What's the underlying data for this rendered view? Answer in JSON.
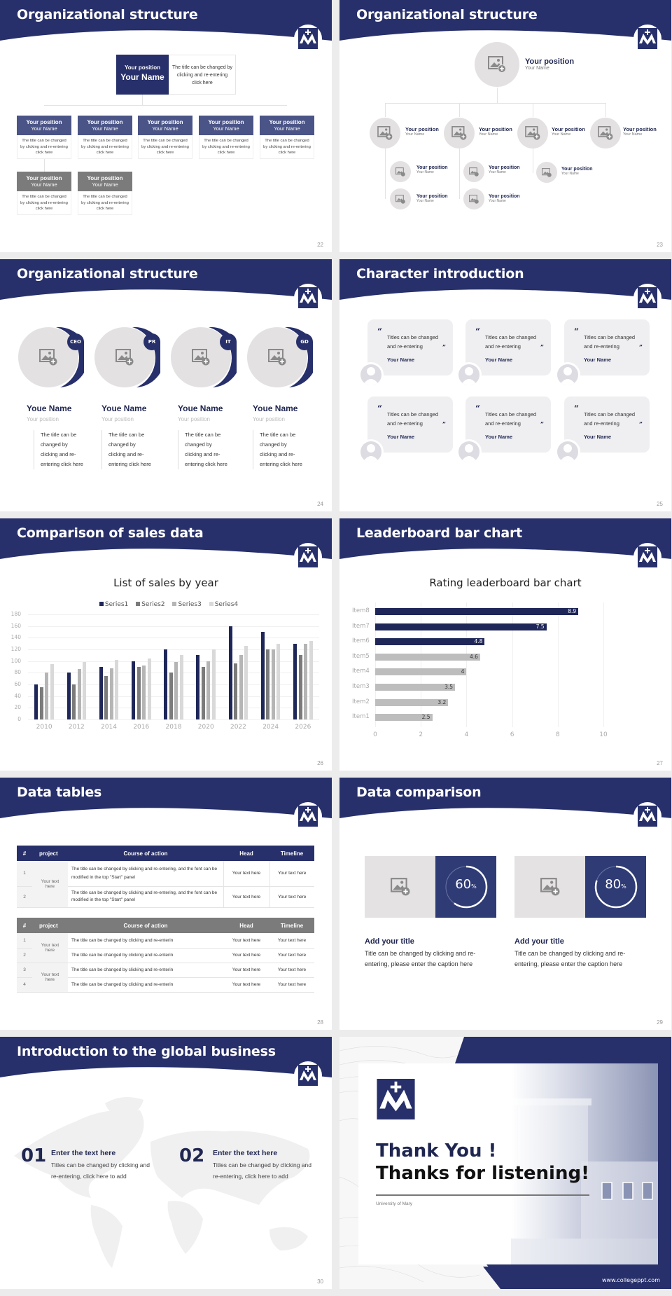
{
  "theme": {
    "navy": "#27306a",
    "gray_dark": "#7b7b7b",
    "gray_mid": "#b5b5b5",
    "gray_light": "#d9d9d9",
    "placeholder_bg": "#e3e1e1"
  },
  "slides": {
    "s22": {
      "title": "Organizational structure",
      "page": "22",
      "top": {
        "position": "Your position",
        "name": "Your Name",
        "desc": "The title can be changed by clicking and re-entering click here"
      },
      "cards": [
        {
          "position": "Your position",
          "name": "Your Name",
          "desc": "The title can be changed by clicking and re-entering click here",
          "style": "navy"
        },
        {
          "position": "Your position",
          "name": "Your Name",
          "desc": "The title can be changed by clicking and re-entering click here",
          "style": "navy"
        },
        {
          "position": "Your position",
          "name": "Your Name",
          "desc": "The title can be changed by clicking and re-entering click here",
          "style": "navy"
        },
        {
          "position": "Your position",
          "name": "Your Name",
          "desc": "The title can be changed by clicking and re-entering click here",
          "style": "navy"
        },
        {
          "position": "Your position",
          "name": "Your Name",
          "desc": "The title can be changed by clicking and re-entering click here",
          "style": "navy"
        },
        {
          "position": "Your position",
          "name": "Your Name",
          "desc": "The title can be changed by clicking and re-entering click here",
          "style": "gray"
        },
        {
          "position": "Your position",
          "name": "Your Name",
          "desc": "The title can be changed by clicking and re-entering click here",
          "style": "gray"
        }
      ]
    },
    "s23": {
      "title": "Organizational structure",
      "page": "23",
      "top": {
        "position": "Your position",
        "name": "Your Name"
      },
      "level2": [
        {
          "position": "Your position",
          "name": "Your Name"
        },
        {
          "position": "Your position",
          "name": "Your Name"
        },
        {
          "position": "Your position",
          "name": "Your Name"
        },
        {
          "position": "Your position",
          "name": "Your Name"
        }
      ],
      "level3": [
        {
          "position": "Your position",
          "name": "Your Name"
        },
        {
          "position": "Your position",
          "name": "Your Name"
        },
        {
          "position": "Your position",
          "name": "Your Name"
        },
        {
          "position": "Your position",
          "name": "Your Name"
        },
        {
          "position": "Your position",
          "name": "Your Name"
        }
      ]
    },
    "s24": {
      "title": "Organizational structure",
      "page": "24",
      "members": [
        {
          "badge": "CEO",
          "name": "Youe Name",
          "position": "Your position",
          "desc": "The title can be changed by clicking and re-entering click here"
        },
        {
          "badge": "PR",
          "name": "Youe Name",
          "position": "Your position",
          "desc": "The title can be changed by clicking and re-entering click here"
        },
        {
          "badge": "IT",
          "name": "Youe Name",
          "position": "Your position",
          "desc": "The title can be changed by clicking and re-entering click here"
        },
        {
          "badge": "GD",
          "name": "Youe Name",
          "position": "Your position",
          "desc": "The title can be changed by clicking and re-entering click here"
        }
      ]
    },
    "s25": {
      "title": "Character introduction",
      "page": "25",
      "cards": [
        {
          "quote": "Titles can be changed and re-entering",
          "name": "Your Name"
        },
        {
          "quote": "Titles can be changed and re-entering",
          "name": "Your Name"
        },
        {
          "quote": "Titles can be changed and re-entering",
          "name": "Your Name"
        },
        {
          "quote": "Titles can be changed and re-entering",
          "name": "Your Name"
        },
        {
          "quote": "Titles can be changed and re-entering",
          "name": "Your Name"
        },
        {
          "quote": "Titles can be changed and re-entering",
          "name": "Your Name"
        }
      ],
      "open_quote": "“",
      "close_quote": "”"
    },
    "s26": {
      "title": "Comparison of sales data",
      "page": "26"
    },
    "s27": {
      "title": "Leaderboard bar chart",
      "page": "27"
    },
    "s28": {
      "title": "Data tables",
      "page": "28",
      "headers": [
        "#",
        "project",
        "Course of action",
        "Head",
        "Timeline"
      ],
      "table1": {
        "group": "Your text here",
        "rows": [
          {
            "num": "1",
            "action": "The title can be changed by clicking and re-entering, and the font can be modified in the top \"Start\" panel",
            "head": "Your text here",
            "timeline": "Your text here"
          },
          {
            "num": "2",
            "action": "The title can be changed by clicking and re-entering, and the font can be modified in the top \"Start\" panel",
            "head": "Your text here",
            "timeline": "Your text here"
          }
        ]
      },
      "table2": {
        "groups": [
          "Your text here",
          "Your text here"
        ],
        "rows": [
          {
            "num": "1",
            "action": "The title can be changed by clicking and re-enterin",
            "head": "Your text here",
            "timeline": "Your text here"
          },
          {
            "num": "2",
            "action": "The title can be changed by clicking and re-enterin",
            "head": "Your text here",
            "timeline": "Your text here"
          },
          {
            "num": "3",
            "action": "The title can be changed by clicking and re-enterin",
            "head": "Your text here",
            "timeline": "Your text here"
          },
          {
            "num": "4",
            "action": "The title can be changed by clicking and re-enterin",
            "head": "Your text here",
            "timeline": "Your text here"
          }
        ]
      }
    },
    "s29": {
      "title": "Data comparison",
      "page": "29",
      "items": [
        {
          "percent": "60",
          "unit": "%",
          "value": 60,
          "heading": "Add your title",
          "desc": "Title can be changed by clicking and re-entering, please enter the caption here"
        },
        {
          "percent": "80",
          "unit": "%",
          "value": 80,
          "heading": "Add your title",
          "desc": "Title can be changed by clicking and re-entering, please enter the caption here"
        }
      ]
    },
    "s30": {
      "title": "Introduction to the global business",
      "page": "30",
      "items": [
        {
          "num": "01",
          "heading": "Enter the text here",
          "desc": "Titles can be changed by clicking and re-entering, click here to add"
        },
        {
          "num": "02",
          "heading": "Enter the text here",
          "desc": "Titles can be changed by clicking and re-entering, click here to add"
        }
      ]
    },
    "s31": {
      "line1": "Thank You !",
      "line2": "Thanks for listening!",
      "university": "University of Mary",
      "url": "www.collegeppt.com"
    }
  },
  "chart_data": [
    {
      "type": "bar",
      "title": "List of sales by year",
      "categories": [
        "2010",
        "2012",
        "2014",
        "2016",
        "2018",
        "2020",
        "2022",
        "2024",
        "2026"
      ],
      "series": [
        {
          "name": "Series1",
          "color": "#1f2759",
          "values": [
            60,
            80,
            90,
            100,
            120,
            110,
            160,
            150,
            130
          ]
        },
        {
          "name": "Series2",
          "color": "#7b7b7b",
          "values": [
            55,
            60,
            75,
            90,
            80,
            90,
            96,
            120,
            110
          ]
        },
        {
          "name": "Series3",
          "color": "#b5b5b5",
          "values": [
            80,
            86,
            88,
            92,
            98,
            100,
            110,
            120,
            130
          ]
        },
        {
          "name": "Series4",
          "color": "#d9d9d9",
          "values": [
            95,
            99,
            102,
            105,
            110,
            120,
            126,
            130,
            135
          ]
        }
      ],
      "xlabel": "",
      "ylabel": "",
      "ylim": [
        0,
        180
      ],
      "yticks": [
        0,
        20,
        40,
        60,
        80,
        100,
        120,
        140,
        160,
        180
      ],
      "legend_position": "top",
      "grid": true
    },
    {
      "type": "bar",
      "orientation": "horizontal",
      "title": "Rating leaderboard bar chart",
      "categories": [
        "Item8",
        "Item7",
        "Item6",
        "Item5",
        "Item4",
        "Item3",
        "Item2",
        "Item1"
      ],
      "values": [
        8.9,
        7.5,
        4.8,
        4.6,
        4,
        3.5,
        3.2,
        2.5
      ],
      "labels": [
        "8.9",
        "7.5",
        "4.8",
        "4.6",
        "4",
        "3.5",
        "3.2",
        "2.5"
      ],
      "colors": [
        "#1f2759",
        "#1f2759",
        "#1f2759",
        "#bdbdbd",
        "#bdbdbd",
        "#bdbdbd",
        "#bdbdbd",
        "#bdbdbd"
      ],
      "xlim": [
        0,
        10
      ],
      "xticks": [
        0,
        2,
        4,
        6,
        8,
        10
      ],
      "grid": true
    }
  ]
}
